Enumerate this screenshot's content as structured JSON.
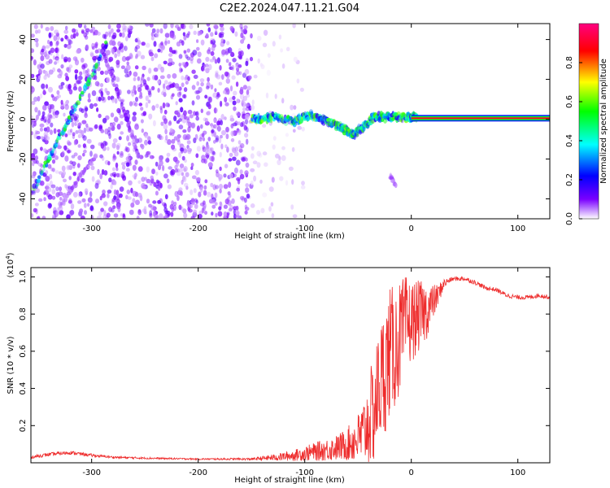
{
  "title": "C2E2.2024.047.11.21.G04",
  "chart_data": [
    {
      "type": "heatmap",
      "title": "C2E2.2024.047.11.21.G04",
      "xlabel": "Height of straight line (km)",
      "ylabel": "Frequency (Hz)",
      "xlim": [
        -357,
        130
      ],
      "ylim": [
        -50,
        48
      ],
      "x_ticks": [
        -300,
        -200,
        -100,
        0,
        100
      ],
      "y_ticks": [
        -40,
        -20,
        0,
        20,
        40
      ],
      "colorbar": {
        "label": "Normalized spectral amplitude",
        "range": [
          0,
          1
        ],
        "ticks": [
          0.0,
          0.2,
          0.4,
          0.6,
          0.8
        ],
        "colors": [
          "#ffffff",
          "#7a00ff",
          "#0000ff",
          "#00ffff",
          "#00ff00",
          "#ffff00",
          "#ff0000",
          "#ff0080"
        ]
      },
      "features": [
        {
          "name": "noise-field",
          "x_range": [
            -357,
            -150
          ],
          "freq_range": [
            -50,
            48
          ],
          "amplitude": 0.1
        },
        {
          "name": "sparse-noise",
          "x_range": [
            -150,
            -100
          ],
          "freq_range": [
            -50,
            48
          ],
          "amplitude": 0.03
        },
        {
          "name": "diagonal-chirp",
          "points": [
            [
              -355,
              -36
            ],
            [
              -345,
              -25
            ],
            [
              -335,
              -14
            ],
            [
              -325,
              -4
            ],
            [
              -315,
              6
            ],
            [
              -305,
              17
            ],
            [
              -295,
              27
            ],
            [
              -285,
              40
            ]
          ],
          "amplitude": 0.4
        },
        {
          "name": "fading-streak",
          "points": [
            [
              -290,
              35
            ],
            [
              -280,
              20
            ],
            [
              -270,
              5
            ],
            [
              -262,
              -8
            ],
            [
              -255,
              -20
            ]
          ],
          "amplitude": 0.12
        },
        {
          "name": "fading-streak",
          "points": [
            [
              -335,
              -50
            ],
            [
              -325,
              -40
            ],
            [
              -315,
              -32
            ],
            [
              -305,
              -25
            ],
            [
              -295,
              -18
            ]
          ],
          "amplitude": 0.08
        },
        {
          "name": "fading-streak",
          "points": [
            [
              -20,
              -28
            ],
            [
              -15,
              -34
            ]
          ],
          "amplitude": 0.08
        },
        {
          "name": "scattered-band",
          "points": [
            [
              -150,
              0
            ],
            [
              -130,
              1
            ],
            [
              -110,
              -1
            ],
            [
              -95,
              2
            ],
            [
              -80,
              -1
            ],
            [
              -65,
              -4
            ],
            [
              -55,
              -8
            ],
            [
              -45,
              -4
            ],
            [
              -35,
              1
            ],
            [
              -20,
              1
            ],
            [
              -5,
              1
            ],
            [
              5,
              1
            ]
          ],
          "amplitude": 0.45
        },
        {
          "name": "steady-tone",
          "x_range": [
            0,
            130
          ],
          "freq": 0.5,
          "amplitude": 0.9
        }
      ]
    },
    {
      "type": "line",
      "xlabel": "Height of straight line (km)",
      "ylabel": "SNR (10 * v/v)",
      "y_multiplier": "(x10",
      "y_multiplier_exp": "4",
      "xlim": [
        -357,
        130
      ],
      "ylim": [
        0,
        1.05
      ],
      "x_ticks": [
        -300,
        -200,
        -100,
        0,
        100
      ],
      "y_ticks": [
        0.2,
        0.4,
        0.6,
        0.8,
        1.0
      ],
      "color": "#ee2c2c",
      "x": [
        -357,
        -340,
        -330,
        -320,
        -300,
        -280,
        -250,
        -200,
        -150,
        -125,
        -110,
        -100,
        -90,
        -80,
        -70,
        -60,
        -50,
        -45,
        -40,
        -35,
        -30,
        -25,
        -20,
        -15,
        -10,
        -5,
        0,
        5,
        10,
        15,
        20,
        25,
        30,
        35,
        40,
        50,
        60,
        70,
        80,
        90,
        100,
        110,
        120,
        130
      ],
      "y": [
        0.03,
        0.045,
        0.05,
        0.055,
        0.04,
        0.03,
        0.025,
        0.02,
        0.02,
        0.03,
        0.04,
        0.05,
        0.06,
        0.07,
        0.08,
        0.1,
        0.13,
        0.16,
        0.22,
        0.28,
        0.42,
        0.5,
        0.6,
        0.62,
        0.68,
        0.74,
        0.76,
        0.78,
        0.8,
        0.82,
        0.86,
        0.9,
        0.96,
        0.98,
        0.99,
        0.99,
        0.97,
        0.94,
        0.93,
        0.9,
        0.89,
        0.89,
        0.9,
        0.89
      ],
      "noise_amplitude": [
        0.008,
        0.01,
        0.01,
        0.01,
        0.008,
        0.006,
        0.005,
        0.004,
        0.006,
        0.02,
        0.03,
        0.04,
        0.05,
        0.06,
        0.07,
        0.09,
        0.14,
        0.18,
        0.25,
        0.3,
        0.32,
        0.35,
        0.35,
        0.33,
        0.3,
        0.27,
        0.22,
        0.2,
        0.18,
        0.15,
        0.1,
        0.06,
        0.03,
        0.015,
        0.012,
        0.012,
        0.012,
        0.012,
        0.012,
        0.012,
        0.012,
        0.012,
        0.012,
        0.012
      ]
    }
  ]
}
